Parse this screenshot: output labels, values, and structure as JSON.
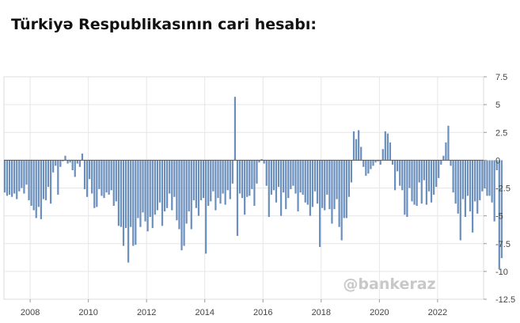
{
  "chart_data": {
    "type": "bar",
    "title": "Türkiyə Respublikasının cari hesabı:",
    "xlabel": "",
    "ylabel": "",
    "watermark": "@bankeraz",
    "colors": {
      "bar": "#6b8fbd",
      "grid": "#e6e6e6",
      "axis": "#555555"
    },
    "ylim": [
      -12.5,
      7.5
    ],
    "yticks": [
      "7.5",
      "5",
      "2.5",
      "0",
      "-2.5",
      "-5",
      "-7.5",
      "-10",
      "-12.5"
    ],
    "ytick_values": [
      7.5,
      5,
      2.5,
      0,
      -2.5,
      -5,
      -7.5,
      -10,
      -12.5
    ],
    "xlim": [
      2007.1,
      2023.58
    ],
    "xticks": [
      "2008",
      "2010",
      "2012",
      "2014",
      "2016",
      "2018",
      "2020",
      "2022"
    ],
    "xtick_values": [
      2008,
      2010,
      2012,
      2014,
      2016,
      2018,
      2020,
      2022
    ],
    "grid": true,
    "x_start": 2007.125,
    "x_step": 0.0833,
    "values": [
      -2.9,
      -3.2,
      -3.1,
      -3.3,
      -3.0,
      -3.5,
      -2.8,
      -2.5,
      -3.0,
      -2.2,
      -3.6,
      -4.1,
      -4.5,
      -5.2,
      -4.2,
      -5.3,
      -3.5,
      -3.6,
      -2.4,
      -3.9,
      -1.1,
      -0.5,
      -3.1,
      -0.6,
      -0.1,
      0.4,
      -0.3,
      -0.2,
      -0.9,
      -1.5,
      -0.3,
      -0.6,
      0.6,
      -2.6,
      -3.3,
      -1.7,
      -3.0,
      -4.3,
      -4.2,
      -2.6,
      -3.2,
      -3.4,
      -2.9,
      -3.1,
      -2.7,
      -4.1,
      -3.7,
      -5.9,
      -6.0,
      -7.7,
      -6.1,
      -9.2,
      -6.0,
      -7.7,
      -7.6,
      -5.2,
      -6.0,
      -4.7,
      -5.5,
      -6.4,
      -5.1,
      -6.1,
      -4.9,
      -4.5,
      -3.8,
      -5.9,
      -4.6,
      -4.3,
      -3.0,
      -4.5,
      -3.3,
      -5.4,
      -6.2,
      -8.1,
      -7.7,
      -5.7,
      -4.6,
      -6.2,
      -3.6,
      -4.3,
      -5.0,
      -3.6,
      -3.4,
      -8.4,
      -4.1,
      -3.7,
      -2.8,
      -4.5,
      -3.4,
      -3.9,
      -3.0,
      -4.0,
      -2.7,
      -3.5,
      -2.1,
      5.7,
      -6.8,
      -3.0,
      -3.4,
      -4.9,
      -3.3,
      -3.2,
      -2.6,
      -4.1,
      -2.1,
      -0.2,
      0.1,
      -0.3,
      -2.3,
      -5.1,
      -3.1,
      -2.7,
      -3.8,
      -2.4,
      -5.0,
      -2.9,
      -4.4,
      -3.4,
      -2.6,
      -2.3,
      -3.0,
      -4.6,
      -2.9,
      -3.1,
      -3.8,
      -4.0,
      -5.0,
      -4.2,
      -2.8,
      -3.9,
      -7.8,
      -4.3,
      -4.5,
      -3.1,
      -4.4,
      -5.7,
      -4.4,
      -3.5,
      -6.0,
      -7.2,
      -5.2,
      -5.2,
      -3.3,
      -2.0,
      2.6,
      1.9,
      2.7,
      1.2,
      -0.6,
      -1.4,
      -1.2,
      -0.8,
      -0.5,
      -0.2,
      -0.1,
      -0.4,
      1.0,
      2.6,
      2.4,
      1.6,
      -0.4,
      -2.7,
      -1.0,
      -2.3,
      -2.7,
      -4.9,
      -5.1,
      -2.5,
      -3.7,
      -4.0,
      -4.1,
      -2.0,
      -3.9,
      -1.8,
      -4.0,
      -2.8,
      -3.8,
      -3.1,
      -2.4,
      -1.6,
      -0.4,
      0.4,
      1.6,
      3.1,
      -0.5,
      -2.9,
      -3.9,
      -4.8,
      -7.2,
      -3.5,
      -5.1,
      -3.2,
      -4.6,
      -6.5,
      -3.7,
      -4.8,
      -3.6,
      -2.8,
      -2.5,
      -3.2,
      -3.2,
      -3.8,
      -5.5,
      -0.9,
      -9.8,
      -8.8
    ]
  }
}
